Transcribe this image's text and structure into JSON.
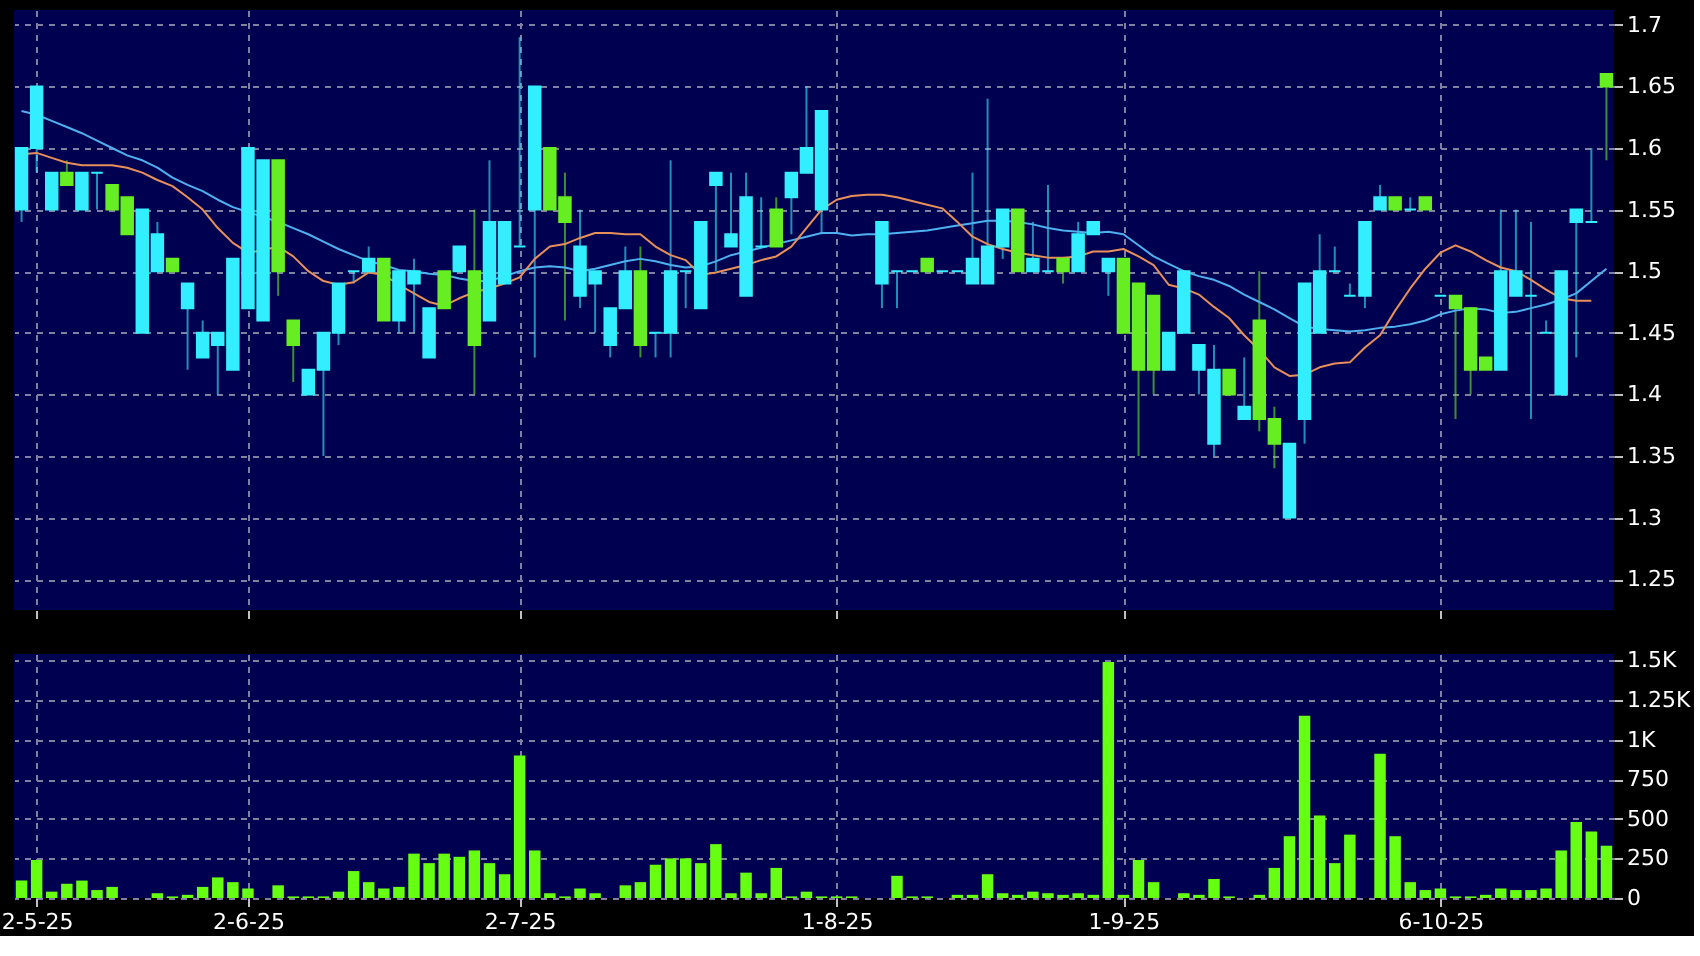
{
  "chart_data": [
    {
      "type": "candlestick",
      "categories": [
        null,
        null,
        null,
        null,
        null,
        null,
        null,
        null,
        null,
        null,
        null,
        null,
        null,
        null,
        null,
        null,
        null,
        null,
        null,
        null,
        null,
        null,
        null,
        null,
        null,
        null,
        null,
        null,
        null,
        null,
        null,
        null,
        null,
        null,
        null,
        null,
        null,
        null,
        null,
        null,
        null,
        null,
        null,
        null,
        null,
        null,
        null,
        null,
        null,
        null,
        null,
        null,
        null,
        null,
        null,
        null,
        null,
        null,
        null,
        null,
        null,
        null,
        null,
        null,
        null,
        null,
        null,
        null,
        null,
        null,
        null,
        null,
        null,
        null,
        null,
        null,
        null,
        null,
        null,
        null,
        null,
        null,
        null,
        null,
        null,
        null,
        null,
        null,
        null,
        null,
        null,
        null,
        null,
        null,
        null,
        null,
        null,
        null,
        null,
        null,
        null,
        null,
        null,
        null,
        null,
        null
      ],
      "ohlc": [
        [
          1.6,
          1.6,
          1.54,
          1.55
        ],
        [
          1.65,
          1.65,
          1.58,
          1.6
        ],
        [
          1.58,
          1.58,
          1.55,
          1.55
        ],
        [
          1.57,
          1.59,
          1.57,
          1.58
        ],
        [
          1.58,
          1.58,
          1.55,
          1.55
        ],
        [
          1.58,
          1.58,
          1.55,
          1.58
        ],
        [
          1.55,
          1.57,
          1.55,
          1.57
        ],
        [
          1.53,
          1.56,
          1.53,
          1.56
        ],
        [
          1.55,
          1.55,
          1.45,
          1.45
        ],
        [
          1.53,
          1.54,
          1.5,
          1.5
        ],
        [
          1.5,
          1.51,
          1.5,
          1.51
        ],
        [
          1.49,
          1.49,
          1.42,
          1.47
        ],
        [
          1.45,
          1.46,
          1.43,
          1.43
        ],
        [
          1.45,
          1.45,
          1.4,
          1.44
        ],
        [
          1.51,
          1.51,
          1.42,
          1.42
        ],
        [
          1.6,
          1.6,
          1.47,
          1.47
        ],
        [
          1.59,
          1.59,
          1.46,
          1.46
        ],
        [
          1.5,
          1.59,
          1.48,
          1.59
        ],
        [
          1.44,
          1.46,
          1.41,
          1.46
        ],
        [
          1.42,
          1.42,
          1.4,
          1.4
        ],
        [
          1.45,
          1.45,
          1.35,
          1.42
        ],
        [
          1.49,
          1.49,
          1.44,
          1.45
        ],
        [
          1.5,
          1.5,
          1.49,
          1.5
        ],
        [
          1.51,
          1.52,
          1.5,
          1.5
        ],
        [
          1.46,
          1.51,
          1.46,
          1.51
        ],
        [
          1.5,
          1.5,
          1.45,
          1.46
        ],
        [
          1.5,
          1.51,
          1.45,
          1.49
        ],
        [
          1.47,
          1.47,
          1.43,
          1.43
        ],
        [
          1.47,
          1.5,
          1.47,
          1.5
        ],
        [
          1.52,
          1.52,
          1.5,
          1.5
        ],
        [
          1.44,
          1.55,
          1.4,
          1.5
        ],
        [
          1.54,
          1.59,
          1.46,
          1.46
        ],
        [
          1.54,
          1.54,
          1.49,
          1.49
        ],
        [
          1.52,
          1.69,
          1.52,
          1.52
        ],
        [
          1.65,
          1.65,
          1.43,
          1.55
        ],
        [
          1.55,
          1.6,
          1.55,
          1.6
        ],
        [
          1.54,
          1.58,
          1.46,
          1.56
        ],
        [
          1.52,
          1.55,
          1.47,
          1.48
        ],
        [
          1.5,
          1.5,
          1.45,
          1.49
        ],
        [
          1.47,
          1.47,
          1.43,
          1.44
        ],
        [
          1.5,
          1.52,
          1.47,
          1.47
        ],
        [
          1.44,
          1.52,
          1.43,
          1.5
        ],
        [
          1.45,
          1.45,
          1.43,
          1.45
        ],
        [
          1.5,
          1.59,
          1.43,
          1.45
        ],
        [
          1.5,
          1.5,
          1.47,
          1.5
        ],
        [
          1.54,
          1.54,
          1.47,
          1.47
        ],
        [
          1.58,
          1.58,
          1.5,
          1.57
        ],
        [
          1.53,
          1.58,
          1.52,
          1.52
        ],
        [
          1.56,
          1.58,
          1.48,
          1.48
        ],
        [
          1.52,
          1.56,
          1.52,
          1.52
        ],
        [
          1.52,
          1.56,
          1.52,
          1.55
        ],
        [
          1.58,
          1.58,
          1.53,
          1.56
        ],
        [
          1.6,
          1.65,
          1.58,
          1.58
        ],
        [
          1.63,
          1.63,
          1.53,
          1.55
        ],
        null,
        null,
        null,
        [
          1.54,
          1.54,
          1.47,
          1.49
        ],
        [
          1.5,
          1.5,
          1.47,
          1.5
        ],
        [
          1.5,
          1.5,
          1.5,
          1.5
        ],
        [
          1.5,
          1.51,
          1.5,
          1.51
        ],
        [
          1.5,
          1.5,
          1.5,
          1.5
        ],
        [
          1.5,
          1.5,
          1.5,
          1.5
        ],
        [
          1.51,
          1.58,
          1.49,
          1.49
        ],
        [
          1.52,
          1.64,
          1.49,
          1.49
        ],
        [
          1.55,
          1.55,
          1.51,
          1.52
        ],
        [
          1.5,
          1.55,
          1.5,
          1.55
        ],
        [
          1.51,
          1.54,
          1.5,
          1.5
        ],
        [
          1.5,
          1.57,
          1.5,
          1.5
        ],
        [
          1.5,
          1.51,
          1.49,
          1.51
        ],
        [
          1.53,
          1.54,
          1.5,
          1.5
        ],
        [
          1.54,
          1.54,
          1.53,
          1.53
        ],
        [
          1.51,
          1.51,
          1.48,
          1.5
        ],
        [
          1.45,
          1.51,
          1.45,
          1.51
        ],
        [
          1.42,
          1.49,
          1.35,
          1.49
        ],
        [
          1.42,
          1.48,
          1.4,
          1.48
        ],
        [
          1.45,
          1.45,
          1.42,
          1.42
        ],
        [
          1.5,
          1.5,
          1.45,
          1.45
        ],
        [
          1.44,
          1.44,
          1.4,
          1.42
        ],
        [
          1.42,
          1.44,
          1.35,
          1.36
        ],
        [
          1.4,
          1.42,
          1.4,
          1.42
        ],
        [
          1.39,
          1.43,
          1.38,
          1.38
        ],
        [
          1.38,
          1.5,
          1.37,
          1.46
        ],
        [
          1.36,
          1.39,
          1.34,
          1.38
        ],
        [
          1.36,
          1.36,
          1.3,
          1.3
        ],
        [
          1.49,
          1.49,
          1.36,
          1.38
        ],
        [
          1.5,
          1.53,
          1.45,
          1.45
        ],
        [
          1.5,
          1.52,
          1.5,
          1.5
        ],
        [
          1.48,
          1.49,
          1.48,
          1.48
        ],
        [
          1.54,
          1.54,
          1.47,
          1.48
        ],
        [
          1.56,
          1.57,
          1.55,
          1.55
        ],
        [
          1.55,
          1.56,
          1.55,
          1.56
        ],
        [
          1.55,
          1.56,
          1.55,
          1.55
        ],
        [
          1.55,
          1.56,
          1.55,
          1.56
        ],
        [
          1.48,
          1.48,
          1.48,
          1.48
        ],
        [
          1.47,
          1.48,
          1.38,
          1.48
        ],
        [
          1.42,
          1.47,
          1.4,
          1.47
        ],
        [
          1.42,
          1.43,
          1.42,
          1.43
        ],
        [
          1.5,
          1.55,
          1.42,
          1.42
        ],
        [
          1.5,
          1.55,
          1.48,
          1.48
        ],
        [
          1.48,
          1.54,
          1.38,
          1.48
        ],
        [
          1.45,
          1.46,
          1.45,
          1.45
        ],
        [
          1.5,
          1.5,
          1.4,
          1.4
        ],
        [
          1.55,
          1.55,
          1.43,
          1.54
        ],
        [
          1.54,
          1.6,
          1.54,
          1.54
        ],
        [
          1.65,
          1.66,
          1.59,
          1.66
        ]
      ],
      "colors": [
        "#33eeff",
        "#33eeff",
        "#33eeff",
        "#66ee22",
        "#33eeff",
        "#33eeff",
        "#66ee22",
        "#66ee22",
        "#33eeff",
        "#33eeff",
        "#66ee22",
        "#33eeff",
        "#33eeff",
        "#33eeff",
        "#33eeff",
        "#33eeff",
        "#33eeff",
        "#66ee22",
        "#66ee22",
        "#33eeff",
        "#33eeff",
        "#33eeff",
        "#33eeff",
        "#33eeff",
        "#66ee22",
        "#33eeff",
        "#33eeff",
        "#33eeff",
        "#66ee22",
        "#33eeff",
        "#66ee22",
        "#33eeff",
        "#33eeff",
        "#33eeff",
        "#33eeff",
        "#66ee22",
        "#66ee22",
        "#33eeff",
        "#33eeff",
        "#33eeff",
        "#33eeff",
        "#66ee22",
        "#33eeff",
        "#33eeff",
        "#33eeff",
        "#33eeff",
        "#33eeff",
        "#33eeff",
        "#33eeff",
        "#33eeff",
        "#66ee22",
        "#33eeff",
        "#33eeff",
        "#33eeff",
        null,
        null,
        null,
        "#33eeff",
        "#33eeff",
        "#33eeff",
        "#66ee22",
        "#33eeff",
        "#33eeff",
        "#33eeff",
        "#33eeff",
        "#33eeff",
        "#66ee22",
        "#33eeff",
        "#33eeff",
        "#66ee22",
        "#33eeff",
        "#33eeff",
        "#33eeff",
        "#66ee22",
        "#66ee22",
        "#66ee22",
        "#33eeff",
        "#33eeff",
        "#33eeff",
        "#33eeff",
        "#66ee22",
        "#33eeff",
        "#66ee22",
        "#66ee22",
        "#33eeff",
        "#33eeff",
        "#33eeff",
        "#33eeff",
        "#33eeff",
        "#33eeff",
        "#33eeff",
        "#66ee22",
        "#33eeff",
        "#66ee22",
        "#33eeff",
        "#66ee22",
        "#66ee22",
        "#66ee22",
        "#33eeff",
        "#33eeff",
        "#33eeff",
        "#33eeff",
        "#33eeff",
        "#33eeff",
        "#33eeff",
        "#66ee22"
      ],
      "series": [
        {
          "type": "line",
          "color": "#4fb0f0",
          "values": [
            1.63,
            1.627,
            1.622,
            1.617,
            1.612,
            1.606,
            1.6,
            1.594,
            1.59,
            1.584,
            1.576,
            1.57,
            1.565,
            1.558,
            1.552,
            1.548,
            1.544,
            1.54,
            1.535,
            1.53,
            1.524,
            1.518,
            1.513,
            1.508,
            1.505,
            1.501,
            1.5,
            1.498,
            1.497,
            1.494,
            1.492,
            1.492,
            1.496,
            1.5,
            1.503,
            1.504,
            1.503,
            1.5,
            1.502,
            1.505,
            1.508,
            1.51,
            1.508,
            1.505,
            1.503,
            1.504,
            1.508,
            1.513,
            1.516,
            1.519,
            1.522,
            1.525,
            1.528,
            1.531,
            1.531,
            1.529,
            1.53,
            1.53,
            1.531,
            1.532,
            1.533,
            1.535,
            1.537,
            1.539,
            1.541,
            1.541,
            1.54,
            1.538,
            1.535,
            1.533,
            1.532,
            1.531,
            1.532,
            1.53,
            1.521,
            1.512,
            1.506,
            1.5,
            1.496,
            1.493,
            1.488,
            1.481,
            1.475,
            1.469,
            1.462,
            1.455,
            1.453,
            1.452,
            1.451,
            1.452,
            1.454,
            1.455,
            1.457,
            1.46,
            1.465,
            1.468,
            1.47,
            1.469,
            1.466,
            1.467,
            1.47,
            1.473,
            1.477,
            1.482,
            1.492,
            1.502
          ]
        },
        {
          "type": "line",
          "color": "#e8905a",
          "values": [
            1.595,
            1.596,
            1.592,
            1.588,
            1.586,
            1.586,
            1.586,
            1.584,
            1.58,
            1.574,
            1.569,
            1.56,
            1.55,
            1.535,
            1.523,
            1.515,
            1.517,
            1.52,
            1.512,
            1.5,
            1.492,
            1.489,
            1.491,
            1.499,
            1.497,
            1.489,
            1.482,
            1.475,
            1.472,
            1.478,
            1.483,
            1.486,
            1.49,
            1.495,
            1.51,
            1.52,
            1.522,
            1.527,
            1.531,
            1.531,
            1.53,
            1.53,
            1.52,
            1.513,
            1.509,
            1.497,
            1.499,
            1.502,
            1.505,
            1.509,
            1.512,
            1.52,
            1.535,
            1.55,
            1.558,
            1.561,
            1.562,
            1.562,
            1.56,
            1.557,
            1.554,
            1.551,
            1.54,
            1.528,
            1.522,
            1.518,
            1.515,
            1.513,
            1.511,
            1.511,
            1.512,
            1.516,
            1.516,
            1.518,
            1.512,
            1.505,
            1.489,
            1.486,
            1.481,
            1.471,
            1.462,
            1.448,
            1.436,
            1.422,
            1.415,
            1.416,
            1.422,
            1.425,
            1.426,
            1.438,
            1.448,
            1.468,
            1.486,
            1.502,
            1.515,
            1.521,
            1.516,
            1.509,
            1.503,
            1.5,
            1.493,
            1.485,
            1.478,
            1.476,
            1.476,
            null
          ]
        }
      ],
      "ylim": [
        1.225,
        1.712
      ],
      "yticks": [
        1.25,
        1.3,
        1.35,
        1.4,
        1.45,
        1.5,
        1.55,
        1.6,
        1.65,
        1.7
      ],
      "grid": true,
      "tick_labels": "y"
    },
    {
      "type": "bar",
      "categories": [
        null,
        "2-5-25",
        null,
        null,
        null,
        null,
        null,
        null,
        null,
        null,
        null,
        null,
        null,
        null,
        null,
        "2-6-25",
        null,
        null,
        null,
        null,
        null,
        null,
        null,
        null,
        null,
        null,
        null,
        null,
        null,
        null,
        null,
        null,
        null,
        "2-7-25",
        null,
        null,
        null,
        null,
        null,
        null,
        null,
        null,
        null,
        null,
        null,
        null,
        null,
        null,
        null,
        null,
        null,
        null,
        null,
        null,
        "1-8-25",
        null,
        null,
        null,
        null,
        null,
        null,
        null,
        null,
        null,
        null,
        null,
        null,
        null,
        null,
        null,
        null,
        null,
        null,
        "1-9-25",
        null,
        null,
        null,
        null,
        null,
        null,
        null,
        null,
        null,
        null,
        null,
        null,
        null,
        null,
        null,
        null,
        null,
        null,
        null,
        null,
        "6-10-25",
        null,
        null,
        null,
        null,
        null,
        null,
        null,
        null,
        null,
        null,
        null
      ],
      "values": [
        110,
        240,
        40,
        90,
        110,
        50,
        70,
        0,
        0,
        30,
        10,
        20,
        70,
        130,
        100,
        60,
        0,
        80,
        10,
        10,
        10,
        40,
        170,
        100,
        60,
        70,
        280,
        220,
        280,
        260,
        300,
        220,
        150,
        900,
        300,
        30,
        10,
        60,
        30,
        0,
        80,
        100,
        210,
        250,
        250,
        220,
        340,
        30,
        160,
        30,
        190,
        10,
        40,
        10,
        10,
        10,
        0,
        0,
        140,
        10,
        10,
        0,
        20,
        20,
        150,
        30,
        20,
        40,
        30,
        20,
        30,
        20,
        1490,
        20,
        240,
        100,
        0,
        30,
        20,
        120,
        10,
        0,
        20,
        190,
        390,
        1150,
        520,
        220,
        400,
        0,
        910,
        390,
        100,
        50,
        60,
        10,
        10,
        20,
        60,
        50,
        50,
        60,
        300,
        480,
        420,
        330
      ],
      "color": "#66ff11",
      "ylim": [
        0,
        1540
      ],
      "yticks": [
        0,
        250,
        500,
        750,
        {
          "value": 1000,
          "label": "1K"
        },
        {
          "value": 1250,
          "label": "1.25K"
        },
        {
          "value": 1500,
          "label": "1.5K"
        }
      ],
      "grid": true
    }
  ]
}
